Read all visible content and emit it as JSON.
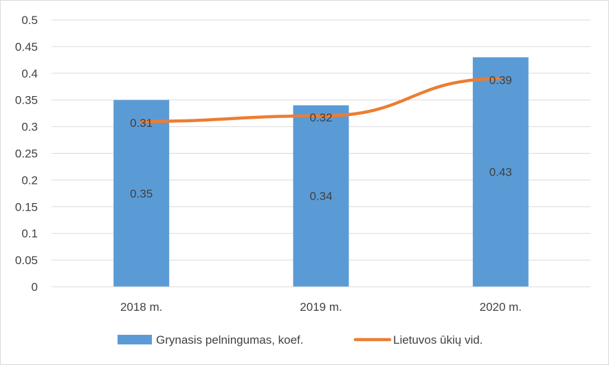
{
  "chart_data": {
    "type": "bar",
    "categories": [
      "2018 m.",
      "2019 m.",
      "2020 m."
    ],
    "series": [
      {
        "name": "Grynasis pelningumas, koef.",
        "type": "bar",
        "values": [
          0.35,
          0.34,
          0.43
        ],
        "color": "#5b9bd5"
      },
      {
        "name": "Lietuvos ūkių vid.",
        "type": "line",
        "values": [
          0.31,
          0.32,
          0.39
        ],
        "color": "#ed7d31"
      }
    ],
    "ylim": [
      0,
      0.5
    ],
    "yticks": [
      "0",
      "0.05",
      "0.1",
      "0.15",
      "0.2",
      "0.25",
      "0.3",
      "0.35",
      "0.4",
      "0.45",
      "0.5"
    ],
    "grid": true,
    "legend": "bottom"
  }
}
